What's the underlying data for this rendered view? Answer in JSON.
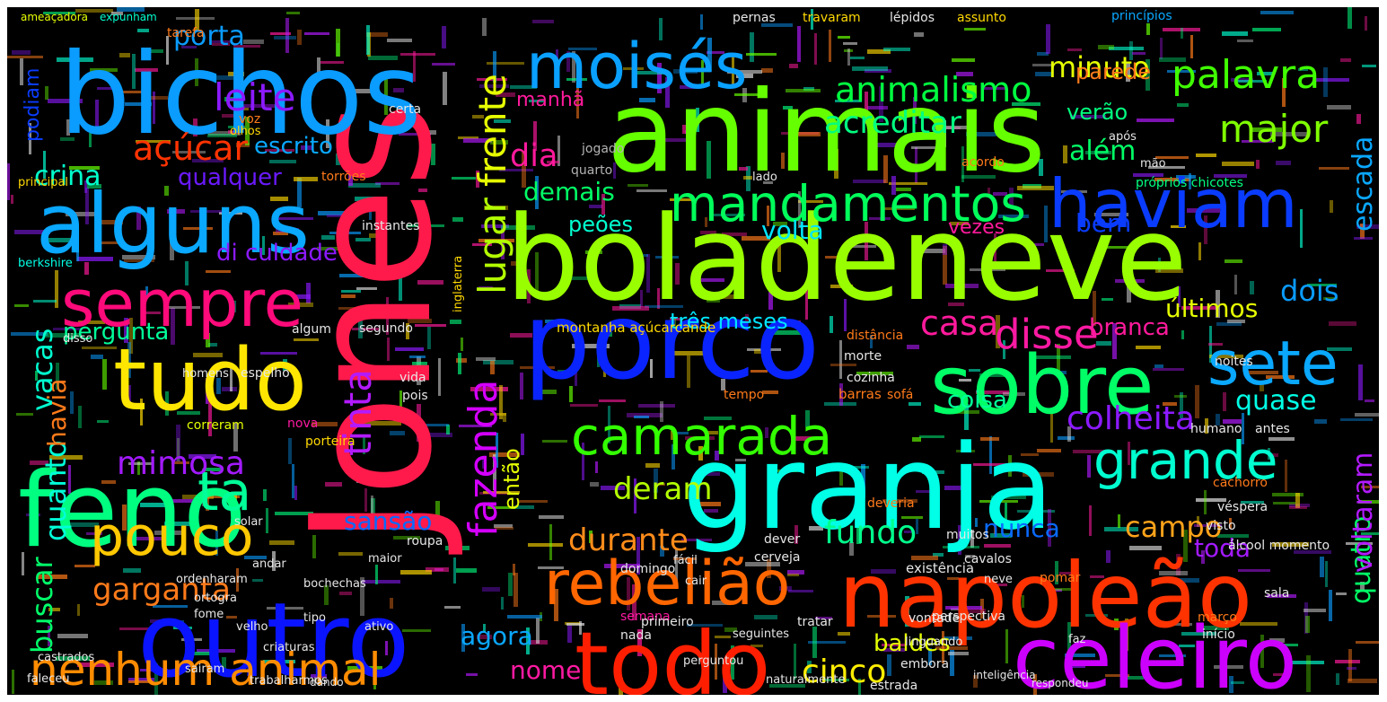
{
  "canvas": {
    "background": "#000000",
    "border_color": "#ffffff"
  },
  "words": [
    {
      "text": "Jones",
      "color": "#ff1a4b"
    },
    {
      "text": "animais",
      "color": "#66ff00"
    },
    {
      "text": "bichos",
      "color": "#0a9cff"
    },
    {
      "text": "boladeneve",
      "color": "#99ff00"
    },
    {
      "text": "granja",
      "color": "#00ffe6"
    },
    {
      "text": "porco",
      "color": "#0a24ff"
    },
    {
      "text": "alguns",
      "color": "#0aa8ff"
    },
    {
      "text": "outro",
      "color": "#0a14ff"
    },
    {
      "text": "napoleão",
      "color": "#ff3300"
    },
    {
      "text": "sobre",
      "color": "#00ff66"
    },
    {
      "text": "feno",
      "color": "#00ff80"
    },
    {
      "text": "tudo",
      "color": "#ffe600"
    },
    {
      "text": "todo",
      "color": "#ff1f00"
    },
    {
      "text": "celeiro",
      "color": "#cc00ff"
    },
    {
      "text": "moisés",
      "color": "#0aa0ff"
    },
    {
      "text": "haviam",
      "color": "#0a3cff"
    },
    {
      "text": "sempre",
      "color": "#ff0a7a"
    },
    {
      "text": "rebelião",
      "color": "#ff6600"
    },
    {
      "text": "camarada",
      "color": "#33ff00"
    },
    {
      "text": "mandamentos",
      "color": "#00ff5a"
    },
    {
      "text": "sete",
      "color": "#0aa8ff"
    },
    {
      "text": "pouco",
      "color": "#ffc800"
    },
    {
      "text": "nenhum animal",
      "color": "#ff8c00"
    },
    {
      "text": "grande",
      "color": "#00ffd0"
    },
    {
      "text": "ta",
      "color": "#00ff99"
    },
    {
      "text": "fazenda",
      "color": "#d400ff"
    },
    {
      "text": "animalismo",
      "color": "#00ff40"
    },
    {
      "text": "palavra",
      "color": "#40ff00"
    },
    {
      "text": "leite",
      "color": "#8c1aff"
    },
    {
      "text": "açúcar",
      "color": "#ff3300"
    },
    {
      "text": "tinta",
      "color": "#b31aff"
    },
    {
      "text": "lugar",
      "color": "#b3ff00"
    },
    {
      "text": "frente",
      "color": "#e6ff00"
    },
    {
      "text": "acreditar",
      "color": "#00ff80"
    },
    {
      "text": "disse",
      "color": "#ff1aa3"
    },
    {
      "text": "casa",
      "color": "#ff1a9c"
    },
    {
      "text": "colheita",
      "color": "#8c1aff"
    },
    {
      "text": "mimosa",
      "color": "#a31aff"
    },
    {
      "text": "major",
      "color": "#80ff00"
    },
    {
      "text": "dia",
      "color": "#ff1a9c"
    },
    {
      "text": "fundo",
      "color": "#00ff8c"
    },
    {
      "text": "campo",
      "color": "#ffa31a"
    },
    {
      "text": "garganta",
      "color": "#ff7a1a"
    },
    {
      "text": "cinco",
      "color": "#ffee00"
    },
    {
      "text": "deram",
      "color": "#b3ff00"
    },
    {
      "text": "durante",
      "color": "#ff8c1a"
    },
    {
      "text": "vacas",
      "color": "#00ffd0"
    },
    {
      "text": "quanto",
      "color": "#00ffd9"
    },
    {
      "text": "buscar",
      "color": "#00ff6a"
    },
    {
      "text": "porta",
      "color": "#0a9cff"
    },
    {
      "text": "minuto",
      "color": "#e6ff00"
    },
    {
      "text": "crina",
      "color": "#00ffcc"
    },
    {
      "text": "escrito",
      "color": "#0aa8ff"
    },
    {
      "text": "qualquer",
      "color": "#6a1aff"
    },
    {
      "text": "demais",
      "color": "#00ff66"
    },
    {
      "text": "dois",
      "color": "#0a9cff"
    },
    {
      "text": "últimos",
      "color": "#e6ff00"
    },
    {
      "text": "havia",
      "color": "#ff7a1a"
    },
    {
      "text": "pergunta",
      "color": "#00ff99"
    },
    {
      "text": "di culdade",
      "color": "#8c1aff"
    },
    {
      "text": "sansão",
      "color": "#0a6aff"
    },
    {
      "text": "volta",
      "color": "#00e6ff"
    },
    {
      "text": "agora",
      "color": "#0aa8ff"
    },
    {
      "text": "nome",
      "color": "#ff1aa3"
    },
    {
      "text": "escada",
      "color": "#0aa8ff"
    },
    {
      "text": "quatro",
      "color": "#00ff66"
    },
    {
      "text": "voltaram",
      "color": "#b31aff"
    },
    {
      "text": "branca",
      "color": "#ff1a9c"
    },
    {
      "text": "coisa",
      "color": "#00ff99"
    },
    {
      "text": "verão",
      "color": "#00ff80"
    },
    {
      "text": "além",
      "color": "#00ff66"
    },
    {
      "text": "bem",
      "color": "#0a3cff"
    },
    {
      "text": "nunca",
      "color": "#0a6aff"
    },
    {
      "text": "toda",
      "color": "#a31aff"
    },
    {
      "text": "quase",
      "color": "#00ffe6"
    },
    {
      "text": "então",
      "color": "#e6ff00"
    },
    {
      "text": "baldes",
      "color": "#e6ff00"
    },
    {
      "text": "vezes",
      "color": "#ff1a9c"
    },
    {
      "text": "manhã",
      "color": "#ff1a9c"
    },
    {
      "text": "peões",
      "color": "#00ffd0"
    },
    {
      "text": "parede",
      "color": "#ff7a1a"
    },
    {
      "text": "podiam",
      "color": "#0a3cff"
    },
    {
      "text": "três meses",
      "color": "#00e6ff"
    },
    {
      "text": "montanha açúcarcande",
      "color": "#ffd900"
    },
    {
      "text": "berkshire",
      "color": "#00ffe6"
    },
    {
      "text": "inglaterra",
      "color": "#ffd900"
    },
    {
      "text": "principal",
      "color": "#ffd900"
    },
    {
      "text": "correram",
      "color": "#e6ff00"
    },
    {
      "text": "ameaçadora",
      "color": "#e6ff00"
    },
    {
      "text": "expunham",
      "color": "#00ffd0"
    },
    {
      "text": "tarefa",
      "color": "#ff7a1a"
    },
    {
      "text": "voz",
      "color": "#ff7a1a"
    },
    {
      "text": "disso",
      "color": "#e6e6e6"
    },
    {
      "text": "torrões",
      "color": "#ff7a1a"
    },
    {
      "text": "instantes",
      "color": "#e6e6e6"
    },
    {
      "text": "olhos",
      "color": "#ffd900"
    },
    {
      "text": "certa",
      "color": "#e6e6e6"
    },
    {
      "text": "jogado",
      "color": "#b3b3b3"
    },
    {
      "text": "quarto",
      "color": "#b3b3b3"
    },
    {
      "text": "após",
      "color": "#e6e6e6"
    },
    {
      "text": "mão",
      "color": "#e6e6e6"
    },
    {
      "text": "acordo",
      "color": "#ff7a1a"
    },
    {
      "text": "lado",
      "color": "#e6e6e6"
    },
    {
      "text": "próprios chicotes",
      "color": "#00ff80"
    },
    {
      "text": "pernas",
      "color": "#e6e6e6"
    },
    {
      "text": "travaram",
      "color": "#ffd900"
    },
    {
      "text": "lépidos",
      "color": "#e6e6e6"
    },
    {
      "text": "assunto",
      "color": "#ffd900"
    },
    {
      "text": "princípios",
      "color": "#0aa8ff"
    },
    {
      "text": "segundo",
      "color": "#e6e6e6"
    },
    {
      "text": "algum",
      "color": "#e6e6e6"
    },
    {
      "text": "homens",
      "color": "#e6e6e6"
    },
    {
      "text": "espelho",
      "color": "#e6e6e6"
    },
    {
      "text": "vida",
      "color": "#e6e6e6"
    },
    {
      "text": "pois",
      "color": "#e6e6e6"
    },
    {
      "text": "nova",
      "color": "#ff1aa3"
    },
    {
      "text": "porteira",
      "color": "#ffd900"
    },
    {
      "text": "tempo",
      "color": "#ff7a1a"
    },
    {
      "text": "barras",
      "color": "#ff7a1a"
    },
    {
      "text": "sofá",
      "color": "#ff7a1a"
    },
    {
      "text": "cozinha",
      "color": "#e6e6e6"
    },
    {
      "text": "morte",
      "color": "#e6e6e6"
    },
    {
      "text": "distância",
      "color": "#ff7a1a"
    },
    {
      "text": "noites",
      "color": "#e6e6e6"
    },
    {
      "text": "antes",
      "color": "#e6e6e6"
    },
    {
      "text": "humano",
      "color": "#e6e6e6"
    },
    {
      "text": "cachorro",
      "color": "#ff7a1a"
    },
    {
      "text": "véspera",
      "color": "#e6e6e6"
    },
    {
      "text": "visto",
      "color": "#e6e6e6"
    },
    {
      "text": "álcool momento",
      "color": "#e6e6e6"
    },
    {
      "text": "muitos",
      "color": "#e6e6e6"
    },
    {
      "text": "deveria",
      "color": "#ff7a1a"
    },
    {
      "text": "dever",
      "color": "#e6e6e6"
    },
    {
      "text": "cerveja",
      "color": "#e6e6e6"
    },
    {
      "text": "existência",
      "color": "#e6e6e6"
    },
    {
      "text": "domingo",
      "color": "#e6e6e6"
    },
    {
      "text": "cavalos",
      "color": "#e6e6e6"
    },
    {
      "text": "sala",
      "color": "#e6e6e6"
    },
    {
      "text": "semana",
      "color": "#ff1aa3"
    },
    {
      "text": "nada",
      "color": "#e6e6e6"
    },
    {
      "text": "neve",
      "color": "#e6e6e6"
    },
    {
      "text": "cair",
      "color": "#e6e6e6"
    },
    {
      "text": "fácil",
      "color": "#e6e6e6"
    },
    {
      "text": "fome",
      "color": "#e6e6e6"
    },
    {
      "text": "ortogra",
      "color": "#e6e6e6"
    },
    {
      "text": "ordenharam",
      "color": "#e6e6e6"
    },
    {
      "text": "andar",
      "color": "#e6e6e6"
    },
    {
      "text": "solar",
      "color": "#e6e6e6"
    },
    {
      "text": "maior",
      "color": "#e6e6e6"
    },
    {
      "text": "roupa",
      "color": "#e6e6e6"
    },
    {
      "text": "velho",
      "color": "#e6e6e6"
    },
    {
      "text": "ativo",
      "color": "#e6e6e6"
    },
    {
      "text": "criaturas",
      "color": "#e6e6e6"
    },
    {
      "text": "bochechas",
      "color": "#e6e6e6"
    },
    {
      "text": "primeiro",
      "color": "#e6e6e6"
    },
    {
      "text": "tratar",
      "color": "#e6e6e6"
    },
    {
      "text": "vontade",
      "color": "#e6e6e6"
    },
    {
      "text": "perspectiva",
      "color": "#e6e6e6"
    },
    {
      "text": "pomar",
      "color": "#ff7a1a"
    },
    {
      "text": "março",
      "color": "#ff7a1a"
    },
    {
      "text": "início",
      "color": "#e6e6e6"
    },
    {
      "text": "embora",
      "color": "#e6e6e6"
    },
    {
      "text": "estrada",
      "color": "#e6e6e6"
    },
    {
      "text": "faz",
      "color": "#e6e6e6"
    },
    {
      "text": "linguando",
      "color": "#e6e6e6"
    },
    {
      "text": "perguntou",
      "color": "#e6e6e6"
    },
    {
      "text": "seguintes",
      "color": "#e6e6e6"
    },
    {
      "text": "sairam",
      "color": "#e6e6e6"
    },
    {
      "text": "trabalharmos",
      "color": "#e6e6e6"
    },
    {
      "text": "castrados",
      "color": "#e6e6e6"
    },
    {
      "text": "faleceu",
      "color": "#e6e6e6"
    },
    {
      "text": "dando",
      "color": "#e6e6e6"
    },
    {
      "text": "naturalmente",
      "color": "#e6e6e6"
    },
    {
      "text": "inteligência",
      "color": "#e6e6e6"
    },
    {
      "text": "tipo",
      "color": "#e6e6e6"
    },
    {
      "text": "respondeu",
      "color": "#e6e6e6"
    }
  ]
}
